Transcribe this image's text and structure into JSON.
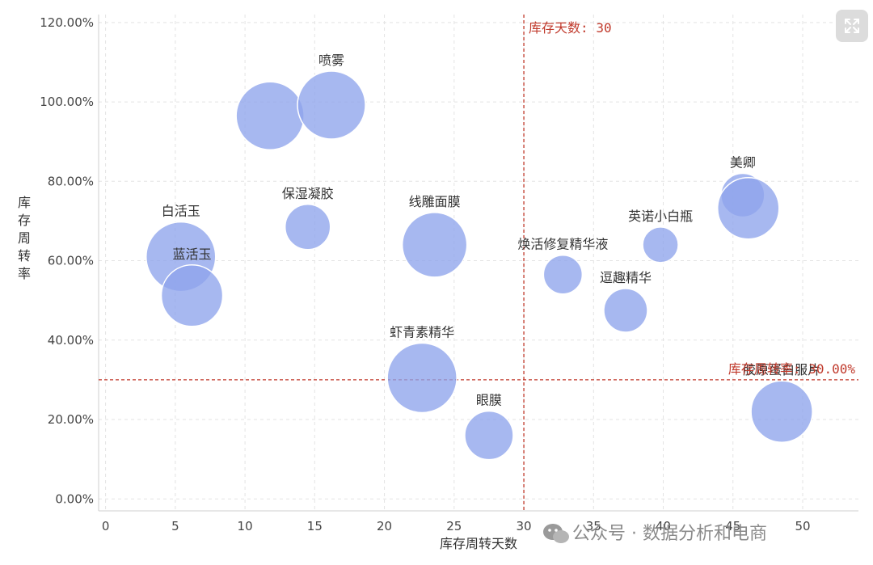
{
  "chart_data": {
    "type": "scatter",
    "xlabel": "库存周转天数",
    "ylabel": "库存周转率",
    "xlim": [
      -0.5,
      54
    ],
    "ylim": [
      -3,
      122
    ],
    "x_ticks": [
      0,
      5,
      10,
      15,
      20,
      25,
      30,
      35,
      40,
      45,
      50
    ],
    "y_ticks": [
      0,
      20,
      40,
      60,
      80,
      100,
      120
    ],
    "y_tick_labels": [
      "0.00%",
      "20.00%",
      "40.00%",
      "60.00%",
      "80.00%",
      "100.00%",
      "120.00%"
    ],
    "grid": true,
    "bubble_color": "#8ea4ec",
    "points": [
      {
        "label": "",
        "x": 11.8,
        "y": 96.5,
        "r": 42
      },
      {
        "label": "喷雾",
        "x": 16.2,
        "y": 99.2,
        "r": 42
      },
      {
        "label": "白活玉",
        "x": 5.4,
        "y": 61,
        "r": 43
      },
      {
        "label": "蓝活玉",
        "x": 6.2,
        "y": 51.2,
        "r": 38
      },
      {
        "label": "保湿凝胶",
        "x": 14.5,
        "y": 68.5,
        "r": 28
      },
      {
        "label": "线雕面膜",
        "x": 23.6,
        "y": 64,
        "r": 40
      },
      {
        "label": "虾青素精华",
        "x": 22.7,
        "y": 30.5,
        "r": 43
      },
      {
        "label": "眼膜",
        "x": 27.5,
        "y": 16,
        "r": 30
      },
      {
        "label": "焕活修复精华液",
        "x": 32.8,
        "y": 56.5,
        "r": 24
      },
      {
        "label": "逗趣精华",
        "x": 37.3,
        "y": 47.5,
        "r": 27
      },
      {
        "label": "英诺小白瓶",
        "x": 39.8,
        "y": 64,
        "r": 22
      },
      {
        "label": "美卿",
        "x": 45.7,
        "y": 76.5,
        "r": 27
      },
      {
        "label": "",
        "x": 46.1,
        "y": 73.2,
        "r": 38
      },
      {
        "label": "胶原蛋白服片",
        "x": 48.5,
        "y": 22,
        "r": 38
      }
    ],
    "ref_lines": {
      "x_value": 30,
      "x_label": "库存天数: 30",
      "y_value": 30,
      "y_label": "库存周转率: 30.00%",
      "color": "#c0392b"
    }
  },
  "watermark": {
    "text": "公众号 · 数据分析和电商",
    "icon": "wechat-icon"
  },
  "expand_icon": "expand-icon"
}
